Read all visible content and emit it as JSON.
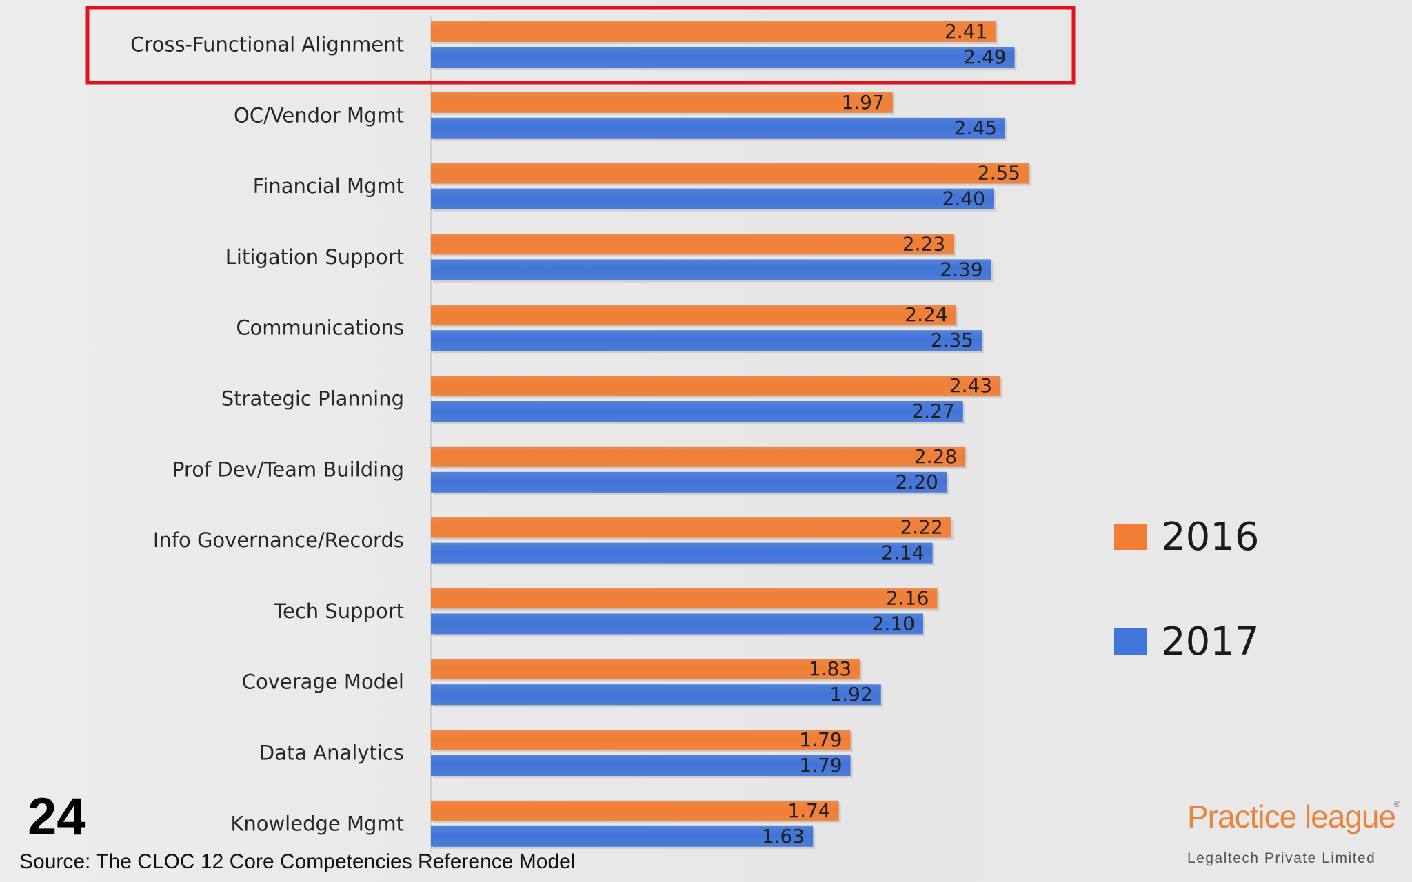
{
  "chart_data": {
    "type": "bar",
    "orientation": "horizontal",
    "categories": [
      "Cross-Functional Alignment",
      "OC/Vendor Mgmt",
      "Financial Mgmt",
      "Litigation Support",
      "Communications",
      "Strategic Planning",
      "Prof Dev/Team Building",
      "Info Governance/Records",
      "Tech Support",
      "Coverage Model",
      "Data Analytics",
      "Knowledge Mgmt"
    ],
    "series": [
      {
        "name": "2016",
        "color": "#f07e35",
        "values": [
          2.41,
          1.97,
          2.55,
          2.23,
          2.24,
          2.43,
          2.28,
          2.22,
          2.16,
          1.83,
          1.79,
          1.74
        ],
        "labels": [
          "2.41",
          "1.97",
          "2.55",
          "2.23",
          "2.24",
          "2.43",
          "2.28",
          "2.22",
          "2.16",
          "1.83",
          "1.79",
          "1.74"
        ]
      },
      {
        "name": "2017",
        "color": "#4275d8",
        "values": [
          2.49,
          2.45,
          2.4,
          2.39,
          2.35,
          2.27,
          2.2,
          2.14,
          2.1,
          1.92,
          1.79,
          1.63
        ],
        "labels": [
          "2.49",
          "2.45",
          "2.40",
          "2.39",
          "2.35",
          "2.27",
          "2.20",
          "2.14",
          "2.10",
          "1.92",
          "1.79",
          "1.63"
        ]
      }
    ],
    "xlim": [
      0,
      2.55
    ],
    "grid": false,
    "legend_position": "right",
    "highlighted_category": "Cross-Functional Alignment",
    "highlight_color": "#e0121b"
  },
  "slide": {
    "number": "24",
    "source": "Source: The CLOC 12 Core Competencies Reference Model"
  },
  "logo": {
    "name": "Practice league",
    "registered_mark": "®",
    "subtitle": "Legaltech Private Limited"
  }
}
